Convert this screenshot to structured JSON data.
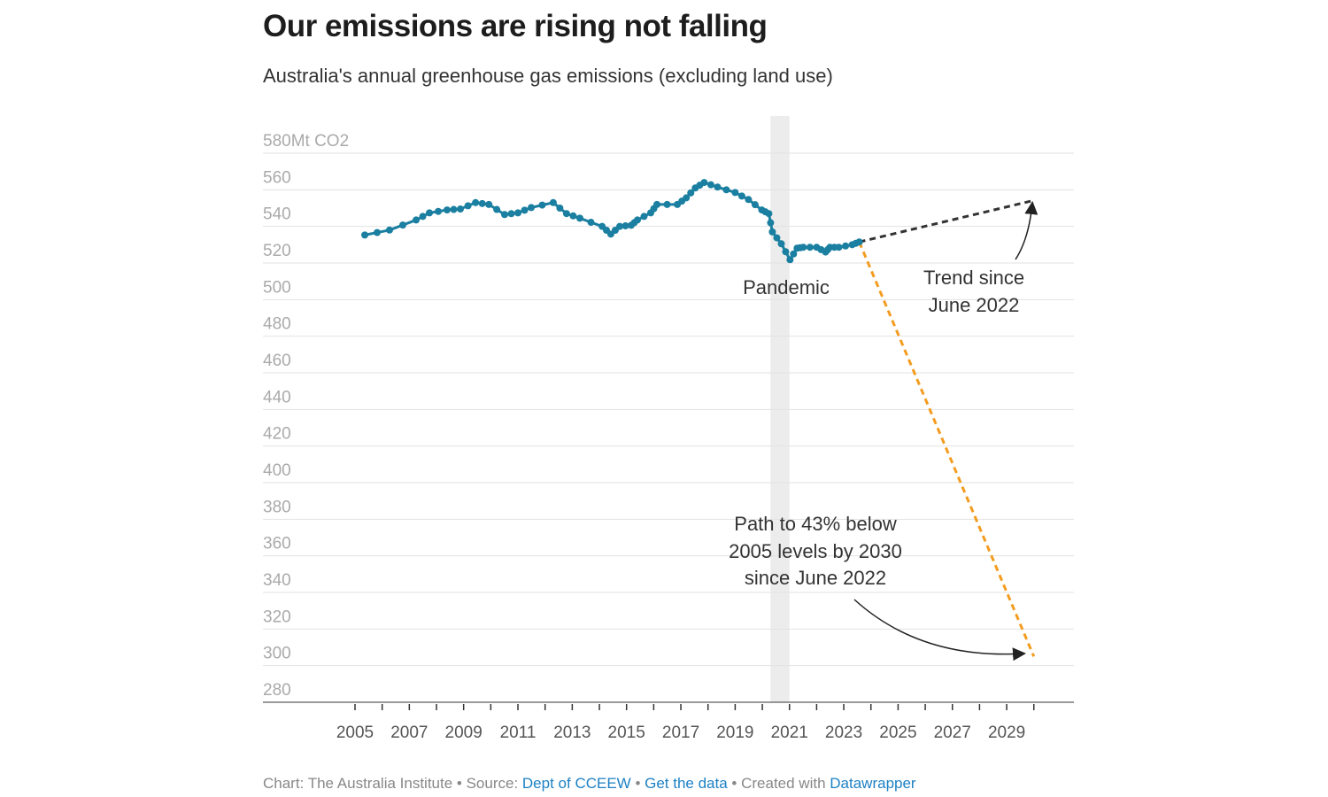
{
  "title": "Our emissions are rising not falling",
  "subtitle": "Australia's annual greenhouse gas emissions (excluding land use)",
  "footer": {
    "chart_by": "Chart: The Australia Institute",
    "sep1": " • Source: ",
    "source": "Dept of CCEEW",
    "sep2": " • ",
    "get_data": "Get the data",
    "sep3": " • Created with ",
    "created_with": "Datawrapper"
  },
  "chart_data": {
    "type": "line",
    "title": "Our emissions are rising not falling",
    "subtitle": "Australia's annual greenhouse gas emissions (excluding land use)",
    "y_unit_label": "580Mt CO2",
    "ylim": [
      280,
      580
    ],
    "xlim": [
      2005,
      2030
    ],
    "y_ticks": [
      280,
      300,
      320,
      340,
      360,
      380,
      400,
      420,
      440,
      460,
      480,
      500,
      520,
      540,
      560,
      580
    ],
    "x_tick_labels": [
      "2005",
      "2007",
      "2009",
      "2011",
      "2013",
      "2015",
      "2017",
      "2019",
      "2021",
      "2023",
      "2025",
      "2027",
      "2029"
    ],
    "grid": true,
    "colors": {
      "series": "#1a7fa0",
      "trend": "#333333",
      "target": "#f39c1f",
      "band": "#ececec"
    },
    "series": [
      {
        "x": [
          2005.36,
          2006.27,
          2007.25,
          2007.74,
          2008.39,
          2008.88,
          2009.44,
          2009.93,
          2010.51,
          2011.0,
          2011.49,
          2012.3,
          2012.79,
          2013.28,
          2014.1,
          2014.42,
          2014.75,
          2015.17,
          2015.4,
          2015.89,
          2016.12,
          2016.87,
          2017.2,
          2017.53,
          2017.86,
          2018.35,
          2019.0,
          2019.49,
          2019.98,
          2020.24,
          2020.37,
          2020.7,
          2021.02,
          2021.28,
          2021.51,
          2022.0,
          2022.33,
          2022.49,
          2022.82,
          2023.31,
          2023.57
        ],
        "values": [
          535.3,
          538,
          543.5,
          547.4,
          549,
          549.5,
          553,
          552,
          546.5,
          547.4,
          550.3,
          553,
          547,
          544.5,
          540,
          535.8,
          540,
          540.6,
          543.5,
          547.4,
          552,
          552,
          555.6,
          561,
          564,
          561.5,
          558.5,
          554.7,
          549,
          547,
          537,
          530.5,
          521.8,
          528.1,
          528.6,
          528.6,
          526,
          528.6,
          528.6,
          530,
          531.5
        ]
      }
    ],
    "projections": [
      {
        "label": "Trend since June 2022",
        "x": [
          2023.57,
          2030
        ],
        "values": [
          531.5,
          554.2
        ],
        "style": "dashed"
      },
      {
        "label": "Path to 43% below 2005 levels by 2030 since June 2022",
        "x": [
          2023.57,
          2030
        ],
        "values": [
          531.5,
          305
        ],
        "style": "dashed"
      }
    ],
    "band": {
      "label": "Pandemic",
      "x": [
        2020.3,
        2021.0
      ]
    },
    "annotations": {
      "pandemic": "Pandemic",
      "trend": [
        "Trend since",
        "June 2022"
      ],
      "path": [
        "Path to 43% below",
        "2005 levels by 2030",
        "since June 2022"
      ]
    }
  }
}
